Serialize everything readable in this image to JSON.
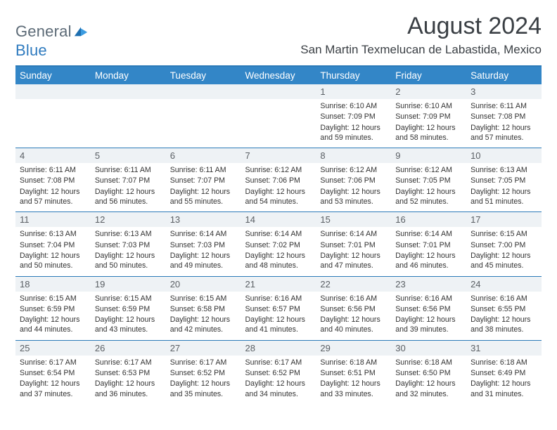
{
  "brand": {
    "left": "General",
    "right": "Blue"
  },
  "title": "August 2024",
  "location": "San Martin Texmelucan de Labastida, Mexico",
  "colors": {
    "header_bg": "#3386c7",
    "header_text": "#ffffff",
    "rule": "#2b7ab8",
    "daynum_bg": "#eef2f5",
    "daynum_text": "#5a5f64",
    "body_text": "#333333",
    "page_bg": "#ffffff",
    "logo_gray": "#5d6b77",
    "logo_blue": "#2f7bbf"
  },
  "typography": {
    "title_fontsize": 34,
    "location_fontsize": 17,
    "weekday_fontsize": 13.5,
    "daynum_fontsize": 13,
    "info_fontsize": 10.6
  },
  "weekdays": [
    "Sunday",
    "Monday",
    "Tuesday",
    "Wednesday",
    "Thursday",
    "Friday",
    "Saturday"
  ],
  "weeks": [
    [
      null,
      null,
      null,
      null,
      {
        "n": "1",
        "sr": "6:10 AM",
        "ss": "7:09 PM",
        "dl": "12 hours and 59 minutes."
      },
      {
        "n": "2",
        "sr": "6:10 AM",
        "ss": "7:09 PM",
        "dl": "12 hours and 58 minutes."
      },
      {
        "n": "3",
        "sr": "6:11 AM",
        "ss": "7:08 PM",
        "dl": "12 hours and 57 minutes."
      }
    ],
    [
      {
        "n": "4",
        "sr": "6:11 AM",
        "ss": "7:08 PM",
        "dl": "12 hours and 57 minutes."
      },
      {
        "n": "5",
        "sr": "6:11 AM",
        "ss": "7:07 PM",
        "dl": "12 hours and 56 minutes."
      },
      {
        "n": "6",
        "sr": "6:11 AM",
        "ss": "7:07 PM",
        "dl": "12 hours and 55 minutes."
      },
      {
        "n": "7",
        "sr": "6:12 AM",
        "ss": "7:06 PM",
        "dl": "12 hours and 54 minutes."
      },
      {
        "n": "8",
        "sr": "6:12 AM",
        "ss": "7:06 PM",
        "dl": "12 hours and 53 minutes."
      },
      {
        "n": "9",
        "sr": "6:12 AM",
        "ss": "7:05 PM",
        "dl": "12 hours and 52 minutes."
      },
      {
        "n": "10",
        "sr": "6:13 AM",
        "ss": "7:05 PM",
        "dl": "12 hours and 51 minutes."
      }
    ],
    [
      {
        "n": "11",
        "sr": "6:13 AM",
        "ss": "7:04 PM",
        "dl": "12 hours and 50 minutes."
      },
      {
        "n": "12",
        "sr": "6:13 AM",
        "ss": "7:03 PM",
        "dl": "12 hours and 50 minutes."
      },
      {
        "n": "13",
        "sr": "6:14 AM",
        "ss": "7:03 PM",
        "dl": "12 hours and 49 minutes."
      },
      {
        "n": "14",
        "sr": "6:14 AM",
        "ss": "7:02 PM",
        "dl": "12 hours and 48 minutes."
      },
      {
        "n": "15",
        "sr": "6:14 AM",
        "ss": "7:01 PM",
        "dl": "12 hours and 47 minutes."
      },
      {
        "n": "16",
        "sr": "6:14 AM",
        "ss": "7:01 PM",
        "dl": "12 hours and 46 minutes."
      },
      {
        "n": "17",
        "sr": "6:15 AM",
        "ss": "7:00 PM",
        "dl": "12 hours and 45 minutes."
      }
    ],
    [
      {
        "n": "18",
        "sr": "6:15 AM",
        "ss": "6:59 PM",
        "dl": "12 hours and 44 minutes."
      },
      {
        "n": "19",
        "sr": "6:15 AM",
        "ss": "6:59 PM",
        "dl": "12 hours and 43 minutes."
      },
      {
        "n": "20",
        "sr": "6:15 AM",
        "ss": "6:58 PM",
        "dl": "12 hours and 42 minutes."
      },
      {
        "n": "21",
        "sr": "6:16 AM",
        "ss": "6:57 PM",
        "dl": "12 hours and 41 minutes."
      },
      {
        "n": "22",
        "sr": "6:16 AM",
        "ss": "6:56 PM",
        "dl": "12 hours and 40 minutes."
      },
      {
        "n": "23",
        "sr": "6:16 AM",
        "ss": "6:56 PM",
        "dl": "12 hours and 39 minutes."
      },
      {
        "n": "24",
        "sr": "6:16 AM",
        "ss": "6:55 PM",
        "dl": "12 hours and 38 minutes."
      }
    ],
    [
      {
        "n": "25",
        "sr": "6:17 AM",
        "ss": "6:54 PM",
        "dl": "12 hours and 37 minutes."
      },
      {
        "n": "26",
        "sr": "6:17 AM",
        "ss": "6:53 PM",
        "dl": "12 hours and 36 minutes."
      },
      {
        "n": "27",
        "sr": "6:17 AM",
        "ss": "6:52 PM",
        "dl": "12 hours and 35 minutes."
      },
      {
        "n": "28",
        "sr": "6:17 AM",
        "ss": "6:52 PM",
        "dl": "12 hours and 34 minutes."
      },
      {
        "n": "29",
        "sr": "6:18 AM",
        "ss": "6:51 PM",
        "dl": "12 hours and 33 minutes."
      },
      {
        "n": "30",
        "sr": "6:18 AM",
        "ss": "6:50 PM",
        "dl": "12 hours and 32 minutes."
      },
      {
        "n": "31",
        "sr": "6:18 AM",
        "ss": "6:49 PM",
        "dl": "12 hours and 31 minutes."
      }
    ]
  ],
  "labels": {
    "sunrise": "Sunrise:",
    "sunset": "Sunset:",
    "daylight": "Daylight:"
  }
}
